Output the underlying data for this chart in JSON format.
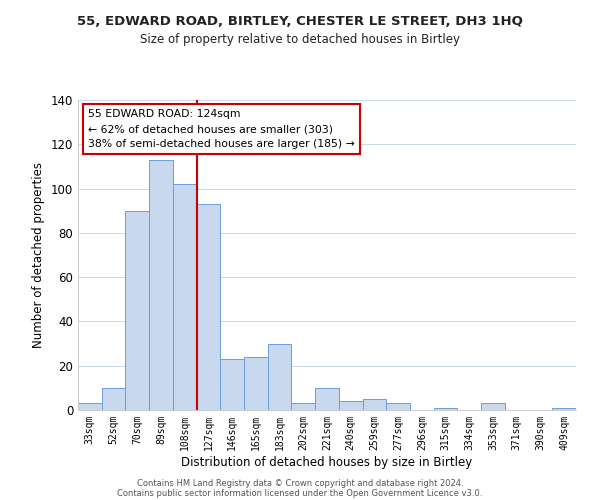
{
  "title": "55, EDWARD ROAD, BIRTLEY, CHESTER LE STREET, DH3 1HQ",
  "subtitle": "Size of property relative to detached houses in Birtley",
  "xlabel": "Distribution of detached houses by size in Birtley",
  "ylabel": "Number of detached properties",
  "bin_labels": [
    "33sqm",
    "52sqm",
    "70sqm",
    "89sqm",
    "108sqm",
    "127sqm",
    "146sqm",
    "165sqm",
    "183sqm",
    "202sqm",
    "221sqm",
    "240sqm",
    "259sqm",
    "277sqm",
    "296sqm",
    "315sqm",
    "334sqm",
    "353sqm",
    "371sqm",
    "390sqm",
    "409sqm"
  ],
  "bar_heights": [
    3,
    10,
    90,
    113,
    102,
    93,
    23,
    24,
    30,
    3,
    10,
    4,
    5,
    3,
    0,
    1,
    0,
    3,
    0,
    0,
    1
  ],
  "bar_color": "#c8d9ef",
  "bar_edge_color": "#6a9fd8",
  "vline_color": "#cc0000",
  "ylim": [
    0,
    140
  ],
  "yticks": [
    0,
    20,
    40,
    60,
    80,
    100,
    120,
    140
  ],
  "annotation_title": "55 EDWARD ROAD: 124sqm",
  "annotation_line1": "← 62% of detached houses are smaller (303)",
  "annotation_line2": "38% of semi-detached houses are larger (185) →",
  "annotation_box_color": "#ffffff",
  "annotation_box_edge": "#cc0000",
  "footer_line1": "Contains HM Land Registry data © Crown copyright and database right 2024.",
  "footer_line2": "Contains public sector information licensed under the Open Government Licence v3.0.",
  "background_color": "#ffffff",
  "grid_color": "#c8d8e8",
  "vline_bin_index": 5
}
